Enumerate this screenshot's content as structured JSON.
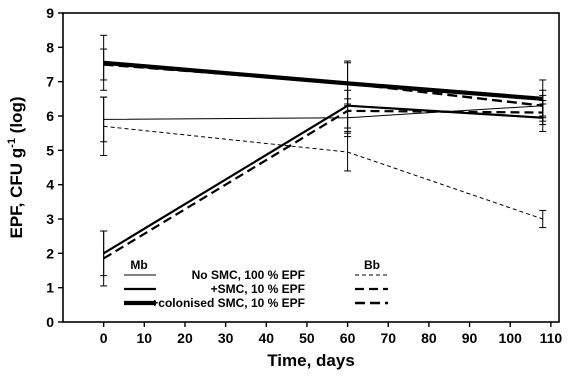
{
  "chart_data": {
    "type": "line",
    "xlabel": "Time, days",
    "ylabel_main": "EPF, CFU g",
    "ylabel_sup": "-1",
    "ylabel_tail": " (log)",
    "xlim": [
      -10,
      112
    ],
    "ylim": [
      0,
      9
    ],
    "xticks": [
      0,
      10,
      20,
      30,
      40,
      50,
      60,
      70,
      80,
      90,
      100,
      110
    ],
    "yticks": [
      0,
      1,
      2,
      3,
      4,
      5,
      6,
      7,
      8,
      9
    ],
    "legend": {
      "header_left": "Mb",
      "header_right": "Bb",
      "rows": [
        "No SMC, 100 % EPF",
        "+SMC, 10 % EPF",
        "+colonised SMC, 10 % EPF"
      ]
    },
    "series": [
      {
        "row": 0,
        "organism": "Mb",
        "style": "thin-solid",
        "x": [
          0,
          60,
          108
        ],
        "y": [
          5.9,
          5.95,
          6.3
        ],
        "err": [
          0.65,
          0.55,
          0.3
        ]
      },
      {
        "row": 0,
        "organism": "Bb",
        "style": "thin-dashed",
        "x": [
          0,
          60,
          108
        ],
        "y": [
          5.7,
          4.95,
          3.0
        ],
        "err": [
          0.85,
          0.55,
          0.25
        ]
      },
      {
        "row": 1,
        "organism": "Mb",
        "style": "mid-solid",
        "x": [
          0,
          60,
          108
        ],
        "y": [
          2.0,
          6.3,
          5.95
        ],
        "err": [
          0.65,
          0.65,
          0.4
        ]
      },
      {
        "row": 1,
        "organism": "Bb",
        "style": "mid-dashed",
        "x": [
          0,
          60,
          108
        ],
        "y": [
          1.85,
          6.15,
          6.1
        ],
        "err": [
          0.8,
          0.6,
          0.35
        ]
      },
      {
        "row": 2,
        "organism": "Mb",
        "style": "thick-solid",
        "x": [
          0,
          60,
          108
        ],
        "y": [
          7.55,
          6.95,
          6.5
        ],
        "err": [
          0.8,
          0.65,
          0.55
        ]
      },
      {
        "row": 2,
        "organism": "Bb",
        "style": "thick-dashed",
        "x": [
          0,
          60,
          108
        ],
        "y": [
          7.5,
          6.95,
          6.3
        ],
        "err": [
          0.45,
          0.6,
          0.45
        ]
      }
    ]
  }
}
